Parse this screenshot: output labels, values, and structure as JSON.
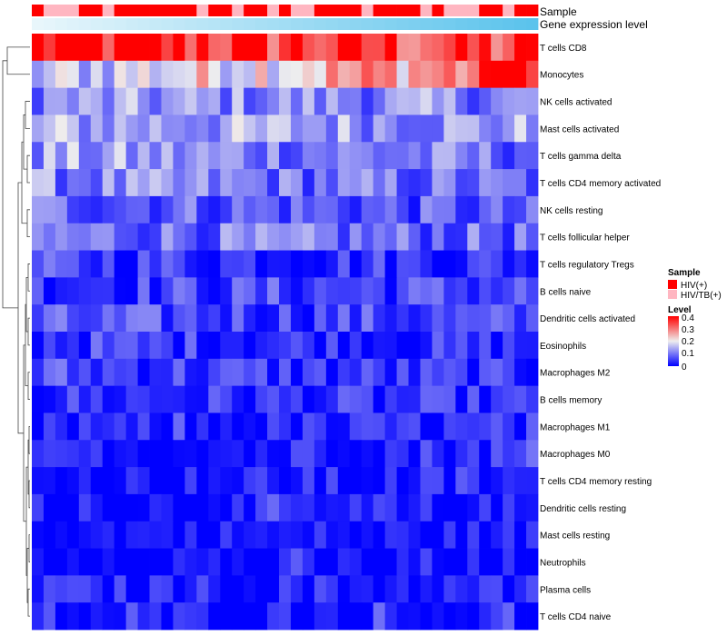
{
  "chart_data": {
    "type": "heatmap",
    "rows": [
      "T cells CD8",
      "Monocytes",
      "NK cells activated",
      "Mast cells activated",
      "T cells gamma delta",
      "T cells CD4 memory activated",
      "NK cells resting",
      "T cells follicular helper",
      "T cells regulatory  Tregs",
      "B cells naive",
      "Dendritic cells activated",
      "Eosinophils",
      "Macrophages M2",
      "B cells memory",
      "Macrophages M1",
      "Macrophages M0",
      "T cells CD4 memory resting",
      "Dendritic cells resting",
      "Mast cells resting",
      "Neutrophils",
      "Plasma cells",
      "T cells CD4 naive"
    ],
    "columns_count": 43,
    "value_range": [
      0,
      0.4
    ],
    "annotations": {
      "sample": {
        "title": "Sample",
        "values": [
          "HIV(+)",
          "HIV/TB(+)",
          "HIV/TB(+)",
          "HIV/TB(+)",
          "HIV(+)",
          "HIV(+)",
          "HIV/TB(+)",
          "HIV(+)",
          "HIV(+)",
          "HIV(+)",
          "HIV(+)",
          "HIV(+)",
          "HIV(+)",
          "HIV(+)",
          "HIV/TB(+)",
          "HIV(+)",
          "HIV(+)",
          "HIV/TB(+)",
          "HIV(+)",
          "HIV(+)",
          "HIV/TB(+)",
          "HIV(+)",
          "HIV/TB(+)",
          "HIV/TB(+)",
          "HIV(+)",
          "HIV(+)",
          "HIV(+)",
          "HIV(+)",
          "HIV/TB(+)",
          "HIV(+)",
          "HIV(+)",
          "HIV(+)",
          "HIV(+)",
          "HIV/TB(+)",
          "HIV(+)",
          "HIV/TB(+)",
          "HIV/TB(+)",
          "HIV/TB(+)",
          "HIV(+)",
          "HIV(+)",
          "HIV/TB(+)",
          "HIV(+)",
          "HIV(+)"
        ]
      },
      "gene_expression_level": {
        "title": "Gene expression level",
        "gradient": [
          "#e8f6fb",
          "#5bc3ec"
        ]
      }
    },
    "legend_sample": {
      "title": "Sample",
      "items": [
        {
          "label": "HIV(+)",
          "color": "#ff0000"
        },
        {
          "label": "HIV/TB(+)",
          "color": "#ffb6c1"
        }
      ]
    },
    "legend_level": {
      "title": "Level",
      "ticks": [
        "0.4",
        "0.3",
        "0.2",
        "0.1",
        "0"
      ],
      "colors": [
        "#0000ff",
        "#eeeeee",
        "#ff0000"
      ]
    },
    "row_profiles": [
      [
        0.4,
        0.33
      ],
      [
        0.15,
        0.32
      ],
      [
        0.12,
        0.11
      ],
      [
        0.14,
        0.13
      ],
      [
        0.13,
        0.09
      ],
      [
        0.11,
        0.08
      ],
      [
        0.09,
        0.06
      ],
      [
        0.1,
        0.08
      ],
      [
        0.05,
        0.04
      ],
      [
        0.05,
        0.06
      ],
      [
        0.06,
        0.05
      ],
      [
        0.05,
        0.03
      ],
      [
        0.06,
        0.03
      ],
      [
        0.04,
        0.03
      ],
      [
        0.01,
        0.03
      ],
      [
        0.01,
        0.04
      ],
      [
        0.01,
        0.02
      ],
      [
        0.01,
        0.01
      ],
      [
        0.01,
        0.01
      ],
      [
        0.0,
        0.0
      ],
      [
        0.02,
        0.02
      ],
      [
        0.01,
        0.02
      ]
    ]
  }
}
